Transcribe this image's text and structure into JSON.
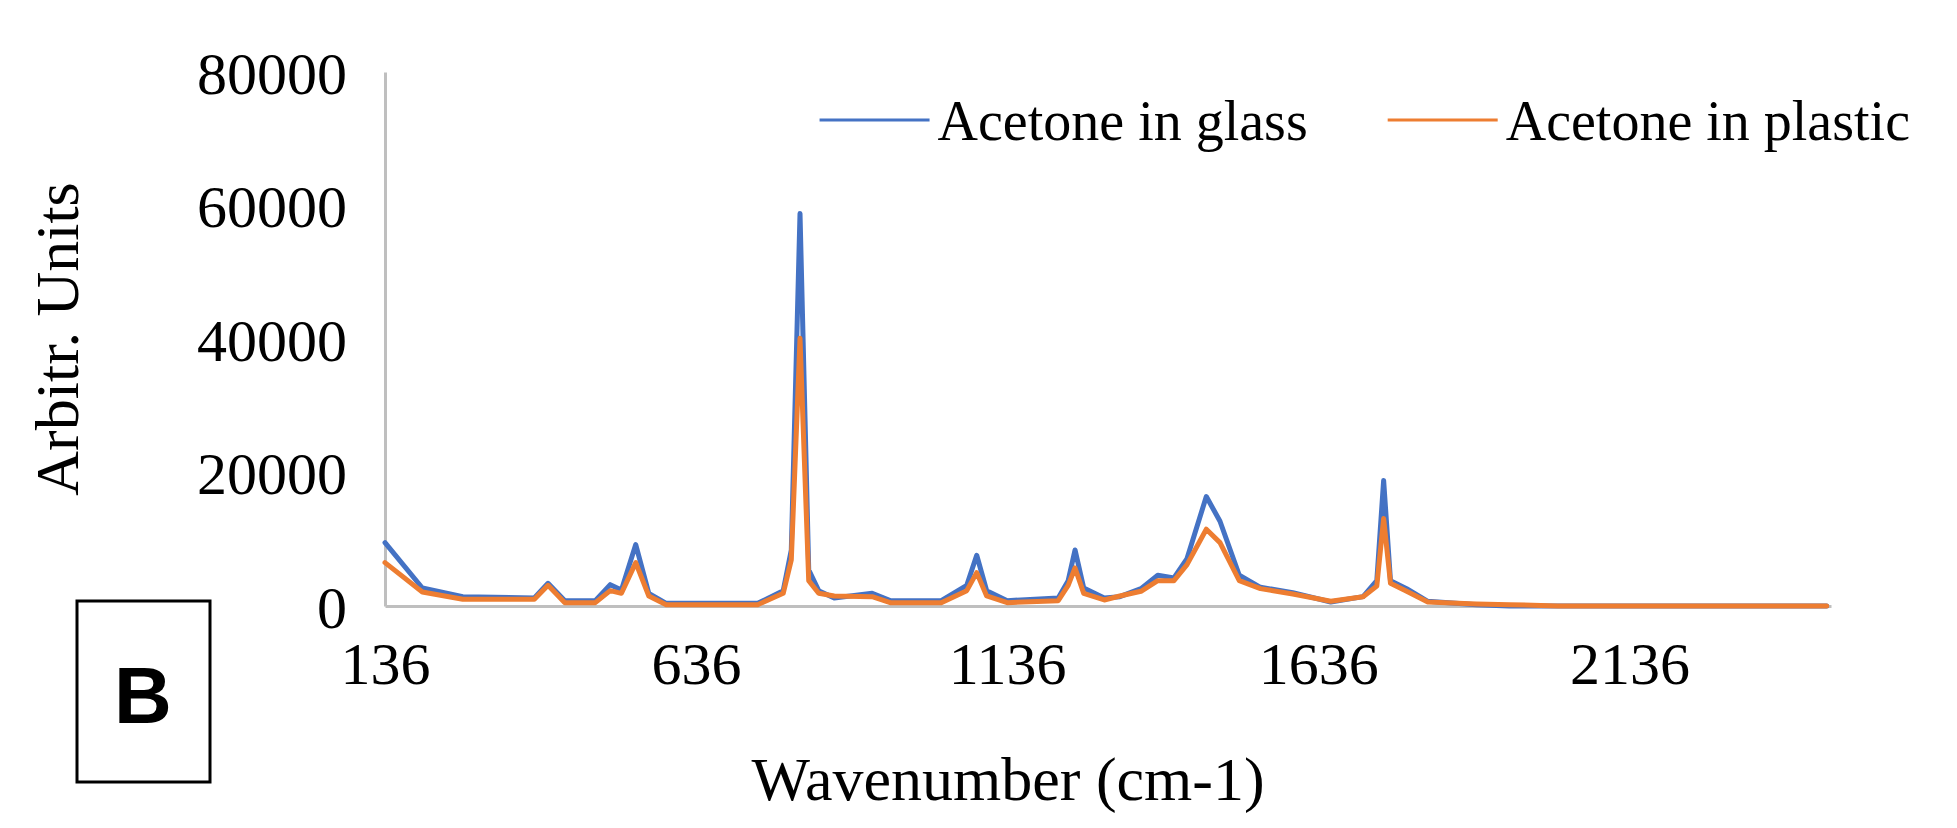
{
  "chart_data": {
    "type": "line",
    "xlabel": "Wavenumber (cm-1)",
    "ylabel": "Arbitr. Units",
    "annotations": [
      "B"
    ],
    "xlim": [
      136,
      2460
    ],
    "xticks": [
      136,
      636,
      1136,
      1636,
      2136
    ],
    "ylim": [
      0,
      80000
    ],
    "yticks": [
      0,
      20000,
      40000,
      60000,
      80000
    ],
    "grid": false,
    "legend": "top right",
    "marker": "none",
    "line_style": "solid",
    "series": [
      {
        "name": "Acetone in glass",
        "color": "#4472c4",
        "x": [
          136,
          196,
          261,
          376,
          398,
          425,
          474,
          498,
          516,
          539,
          560,
          588,
          735,
          776,
          789,
          803,
          817,
          833,
          858,
          919,
          948,
          1030,
          1071,
          1087,
          1103,
          1136,
          1218,
          1234,
          1245,
          1259,
          1292,
          1317,
          1351,
          1378,
          1404,
          1425,
          1456,
          1478,
          1509,
          1543,
          1595,
          1656,
          1708,
          1730,
          1741,
          1752,
          1778,
          1812,
          1890,
          1943,
          2021,
          2453
        ],
        "values": [
          9500,
          2700,
          1400,
          1200,
          3400,
          800,
          800,
          3200,
          2400,
          9200,
          1900,
          400,
          400,
          2300,
          8400,
          58800,
          5400,
          2300,
          1200,
          1900,
          800,
          800,
          3100,
          7600,
          2300,
          800,
          1200,
          3800,
          8400,
          2700,
          1200,
          1400,
          2600,
          4600,
          4200,
          7100,
          16400,
          12700,
          4600,
          2800,
          2000,
          600,
          1400,
          3800,
          18800,
          3800,
          2600,
          700,
          200,
          0,
          0,
          0
        ]
      },
      {
        "name": "Acetone in plastic",
        "color": "#ed7d31",
        "x": [
          136,
          196,
          261,
          376,
          398,
          425,
          474,
          498,
          516,
          539,
          560,
          588,
          735,
          776,
          789,
          803,
          817,
          833,
          858,
          919,
          948,
          1030,
          1071,
          1087,
          1103,
          1136,
          1218,
          1234,
          1245,
          1259,
          1292,
          1317,
          1351,
          1378,
          1404,
          1425,
          1456,
          1478,
          1509,
          1543,
          1595,
          1656,
          1708,
          1730,
          1741,
          1752,
          1778,
          1812,
          1890,
          1943,
          2021,
          2453
        ],
        "values": [
          6500,
          2100,
          1000,
          1000,
          3100,
          500,
          500,
          2300,
          1900,
          6500,
          1500,
          200,
          200,
          1900,
          6900,
          40100,
          3800,
          1900,
          1500,
          1400,
          500,
          500,
          2300,
          5000,
          1500,
          500,
          800,
          3100,
          5700,
          1900,
          900,
          1500,
          2200,
          3800,
          3800,
          6200,
          11500,
          9500,
          3800,
          2600,
          1800,
          700,
          1400,
          3000,
          13100,
          3400,
          2200,
          600,
          300,
          200,
          0,
          0
        ]
      }
    ]
  }
}
